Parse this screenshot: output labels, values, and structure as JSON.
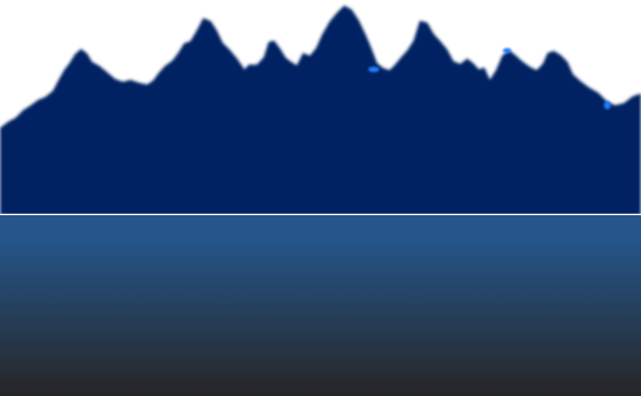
{
  "scene": {
    "colors": {
      "sky": "#ffffff",
      "mountain": "#022462",
      "mountain_highlight": "#1f7cff",
      "horizon": "#ffffff",
      "water_top": "#25558b",
      "water_bottom": "#262626"
    }
  }
}
